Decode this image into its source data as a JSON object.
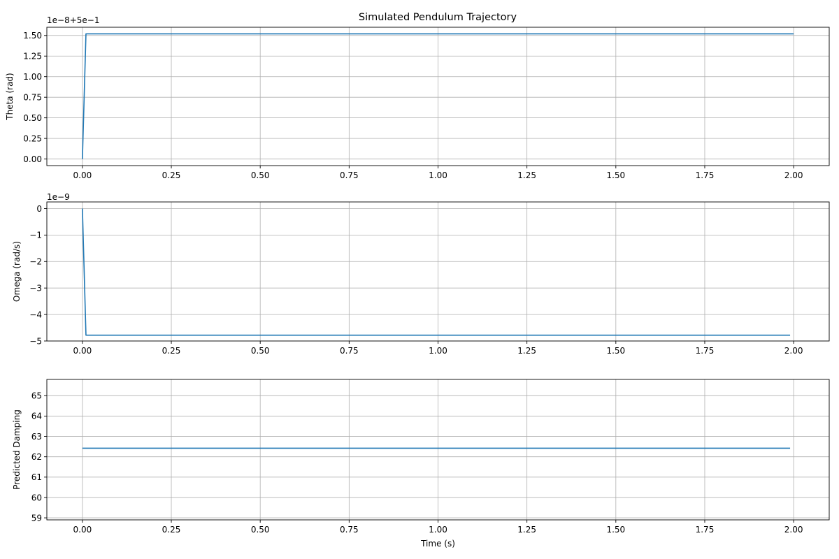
{
  "figure": {
    "title": "Simulated Pendulum Trajectory",
    "line_color": "#1f77b4",
    "grid_color": "#b0b0b0"
  },
  "chart_data": [
    {
      "type": "line",
      "title": "Simulated Pendulum Trajectory",
      "xlabel": "",
      "ylabel": "Theta (rad)",
      "offset_text": "1e−8+5e−1",
      "xlim": [
        -0.1,
        2.1
      ],
      "ylim": [
        -0.08,
        1.6
      ],
      "xticks": [
        0.0,
        0.25,
        0.5,
        0.75,
        1.0,
        1.25,
        1.5,
        1.75,
        2.0
      ],
      "xtick_labels": [
        "0.00",
        "0.25",
        "0.50",
        "0.75",
        "1.00",
        "1.25",
        "1.50",
        "1.75",
        "2.00"
      ],
      "yticks": [
        0.0,
        0.25,
        0.5,
        0.75,
        1.0,
        1.25,
        1.5
      ],
      "ytick_labels": [
        "0.00",
        "0.25",
        "0.50",
        "0.75",
        "1.00",
        "1.25",
        "1.50"
      ],
      "grid": true,
      "series": [
        {
          "x": [
            0.0,
            0.01,
            2.0
          ],
          "y": [
            0.0,
            1.52,
            1.52
          ]
        }
      ]
    },
    {
      "type": "line",
      "xlabel": "",
      "ylabel": "Omega (rad/s)",
      "offset_text": "1e−9",
      "xlim": [
        -0.1,
        2.1
      ],
      "ylim": [
        -5.0,
        0.25
      ],
      "xticks": [
        0.0,
        0.25,
        0.5,
        0.75,
        1.0,
        1.25,
        1.5,
        1.75,
        2.0
      ],
      "xtick_labels": [
        "0.00",
        "0.25",
        "0.50",
        "0.75",
        "1.00",
        "1.25",
        "1.50",
        "1.75",
        "2.00"
      ],
      "yticks": [
        0,
        -1,
        -2,
        -3,
        -4,
        -5
      ],
      "ytick_labels": [
        "0",
        "−1",
        "−2",
        "−3",
        "−4",
        "−5"
      ],
      "grid": true,
      "series": [
        {
          "x": [
            0.0,
            0.01,
            1.99
          ],
          "y": [
            0.0,
            -4.78,
            -4.78
          ]
        }
      ]
    },
    {
      "type": "line",
      "xlabel": "Time (s)",
      "ylabel": "Predicted Damping",
      "offset_text": "",
      "xlim": [
        -0.1,
        2.1
      ],
      "ylim": [
        58.9,
        65.8
      ],
      "xticks": [
        0.0,
        0.25,
        0.5,
        0.75,
        1.0,
        1.25,
        1.5,
        1.75,
        2.0
      ],
      "xtick_labels": [
        "0.00",
        "0.25",
        "0.50",
        "0.75",
        "1.00",
        "1.25",
        "1.50",
        "1.75",
        "2.00"
      ],
      "yticks": [
        59,
        60,
        61,
        62,
        63,
        64,
        65
      ],
      "ytick_labels": [
        "59",
        "60",
        "61",
        "62",
        "63",
        "64",
        "65"
      ],
      "grid": true,
      "series": [
        {
          "x": [
            0.0,
            1.99
          ],
          "y": [
            62.42,
            62.42
          ]
        }
      ]
    }
  ]
}
